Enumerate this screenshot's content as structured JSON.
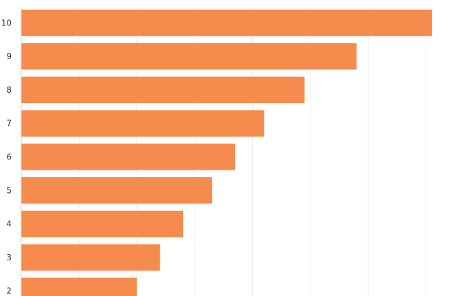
{
  "chart_data": {
    "type": "bar",
    "orientation": "horizontal",
    "categories": [
      "10",
      "9",
      "8",
      "7",
      "6",
      "5",
      "4",
      "3",
      "2"
    ],
    "values": [
      71,
      58,
      49,
      42,
      37,
      33,
      28,
      24,
      20
    ],
    "xlim": [
      0,
      74
    ],
    "grid": true,
    "bar_color": "#f58b4c"
  }
}
